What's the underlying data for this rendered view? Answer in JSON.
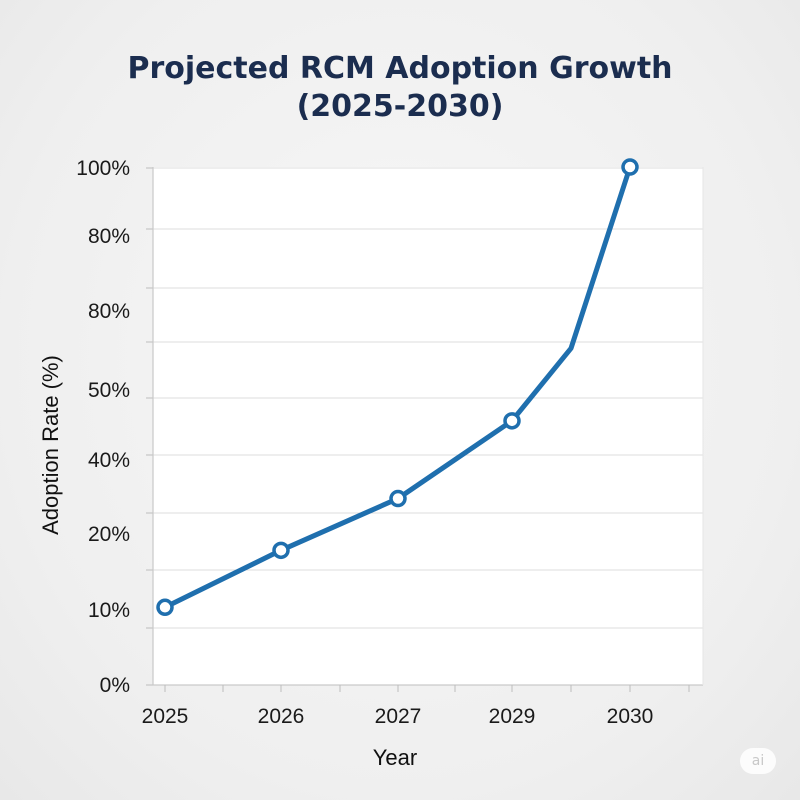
{
  "chart_data": {
    "type": "line",
    "title": "Projected RCM Adoption Growth",
    "subtitle": "(2025-2030)",
    "xlabel": "Year",
    "ylabel": "Adoption Rate (%)",
    "x_tick_labels": [
      "2025",
      "2026",
      "2027",
      "2029",
      "2030"
    ],
    "y_tick_labels": [
      "100%",
      "80%",
      "80%",
      "50%",
      "40%",
      "20%",
      "10%",
      "0%"
    ],
    "ylim": [
      0,
      100
    ],
    "grid": true,
    "series": [
      {
        "name": "Adoption Rate",
        "color": "#1f6fae",
        "marker_fill": "#ffffff",
        "points": [
          {
            "x": "2025",
            "y": 15
          },
          {
            "x": "2026",
            "y": 26
          },
          {
            "x": "2027",
            "y": 36
          },
          {
            "x": "2029",
            "y": 51
          },
          {
            "x": "2030",
            "y": 100
          }
        ],
        "path": [
          {
            "x": "2025",
            "y": 15
          },
          {
            "x": "2026",
            "y": 26
          },
          {
            "x": "2027",
            "y": 36
          },
          {
            "x": "2029",
            "y": 51
          },
          {
            "x": "2029.5",
            "y": 65
          },
          {
            "x": "2030",
            "y": 100
          }
        ]
      }
    ]
  },
  "watermark": "ai"
}
